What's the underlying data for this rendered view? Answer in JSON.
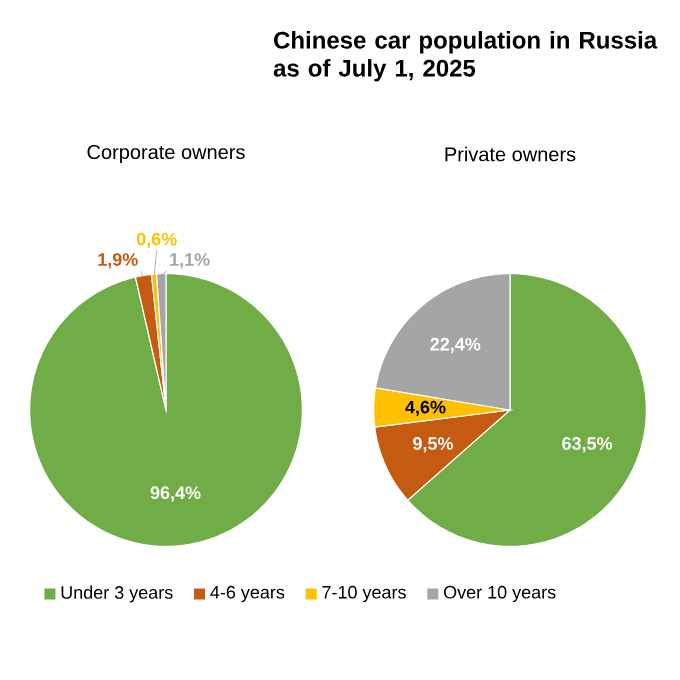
{
  "chart_data": [
    {
      "type": "pie",
      "title": "Corporate owners",
      "categories": [
        "Under 3 years",
        "4-6 years",
        "7-10 years",
        "Over 10 years"
      ],
      "values": [
        96.4,
        1.9,
        0.6,
        1.1
      ],
      "value_labels": [
        "96,4%",
        "1,9%",
        "0,6%",
        "1,1%"
      ],
      "colors": [
        "#70ad47",
        "#c55a11",
        "#ffc000",
        "#a5a5a5"
      ],
      "legend": "bottom"
    },
    {
      "type": "pie",
      "title": "Chinese car population in Russia as of July 1, 2025",
      "subtitle": "Private owners",
      "categories": [
        null,
        null,
        null,
        null
      ],
      "values": [
        63.5,
        9.5,
        4.6,
        22.4
      ],
      "value_labels": [
        "63,5%",
        "9,5%",
        "4,6%",
        "22,4%"
      ],
      "colors": [
        "#70ad47",
        "#c55a11",
        "#ffc000",
        "#a5a5a5"
      ]
    }
  ]
}
